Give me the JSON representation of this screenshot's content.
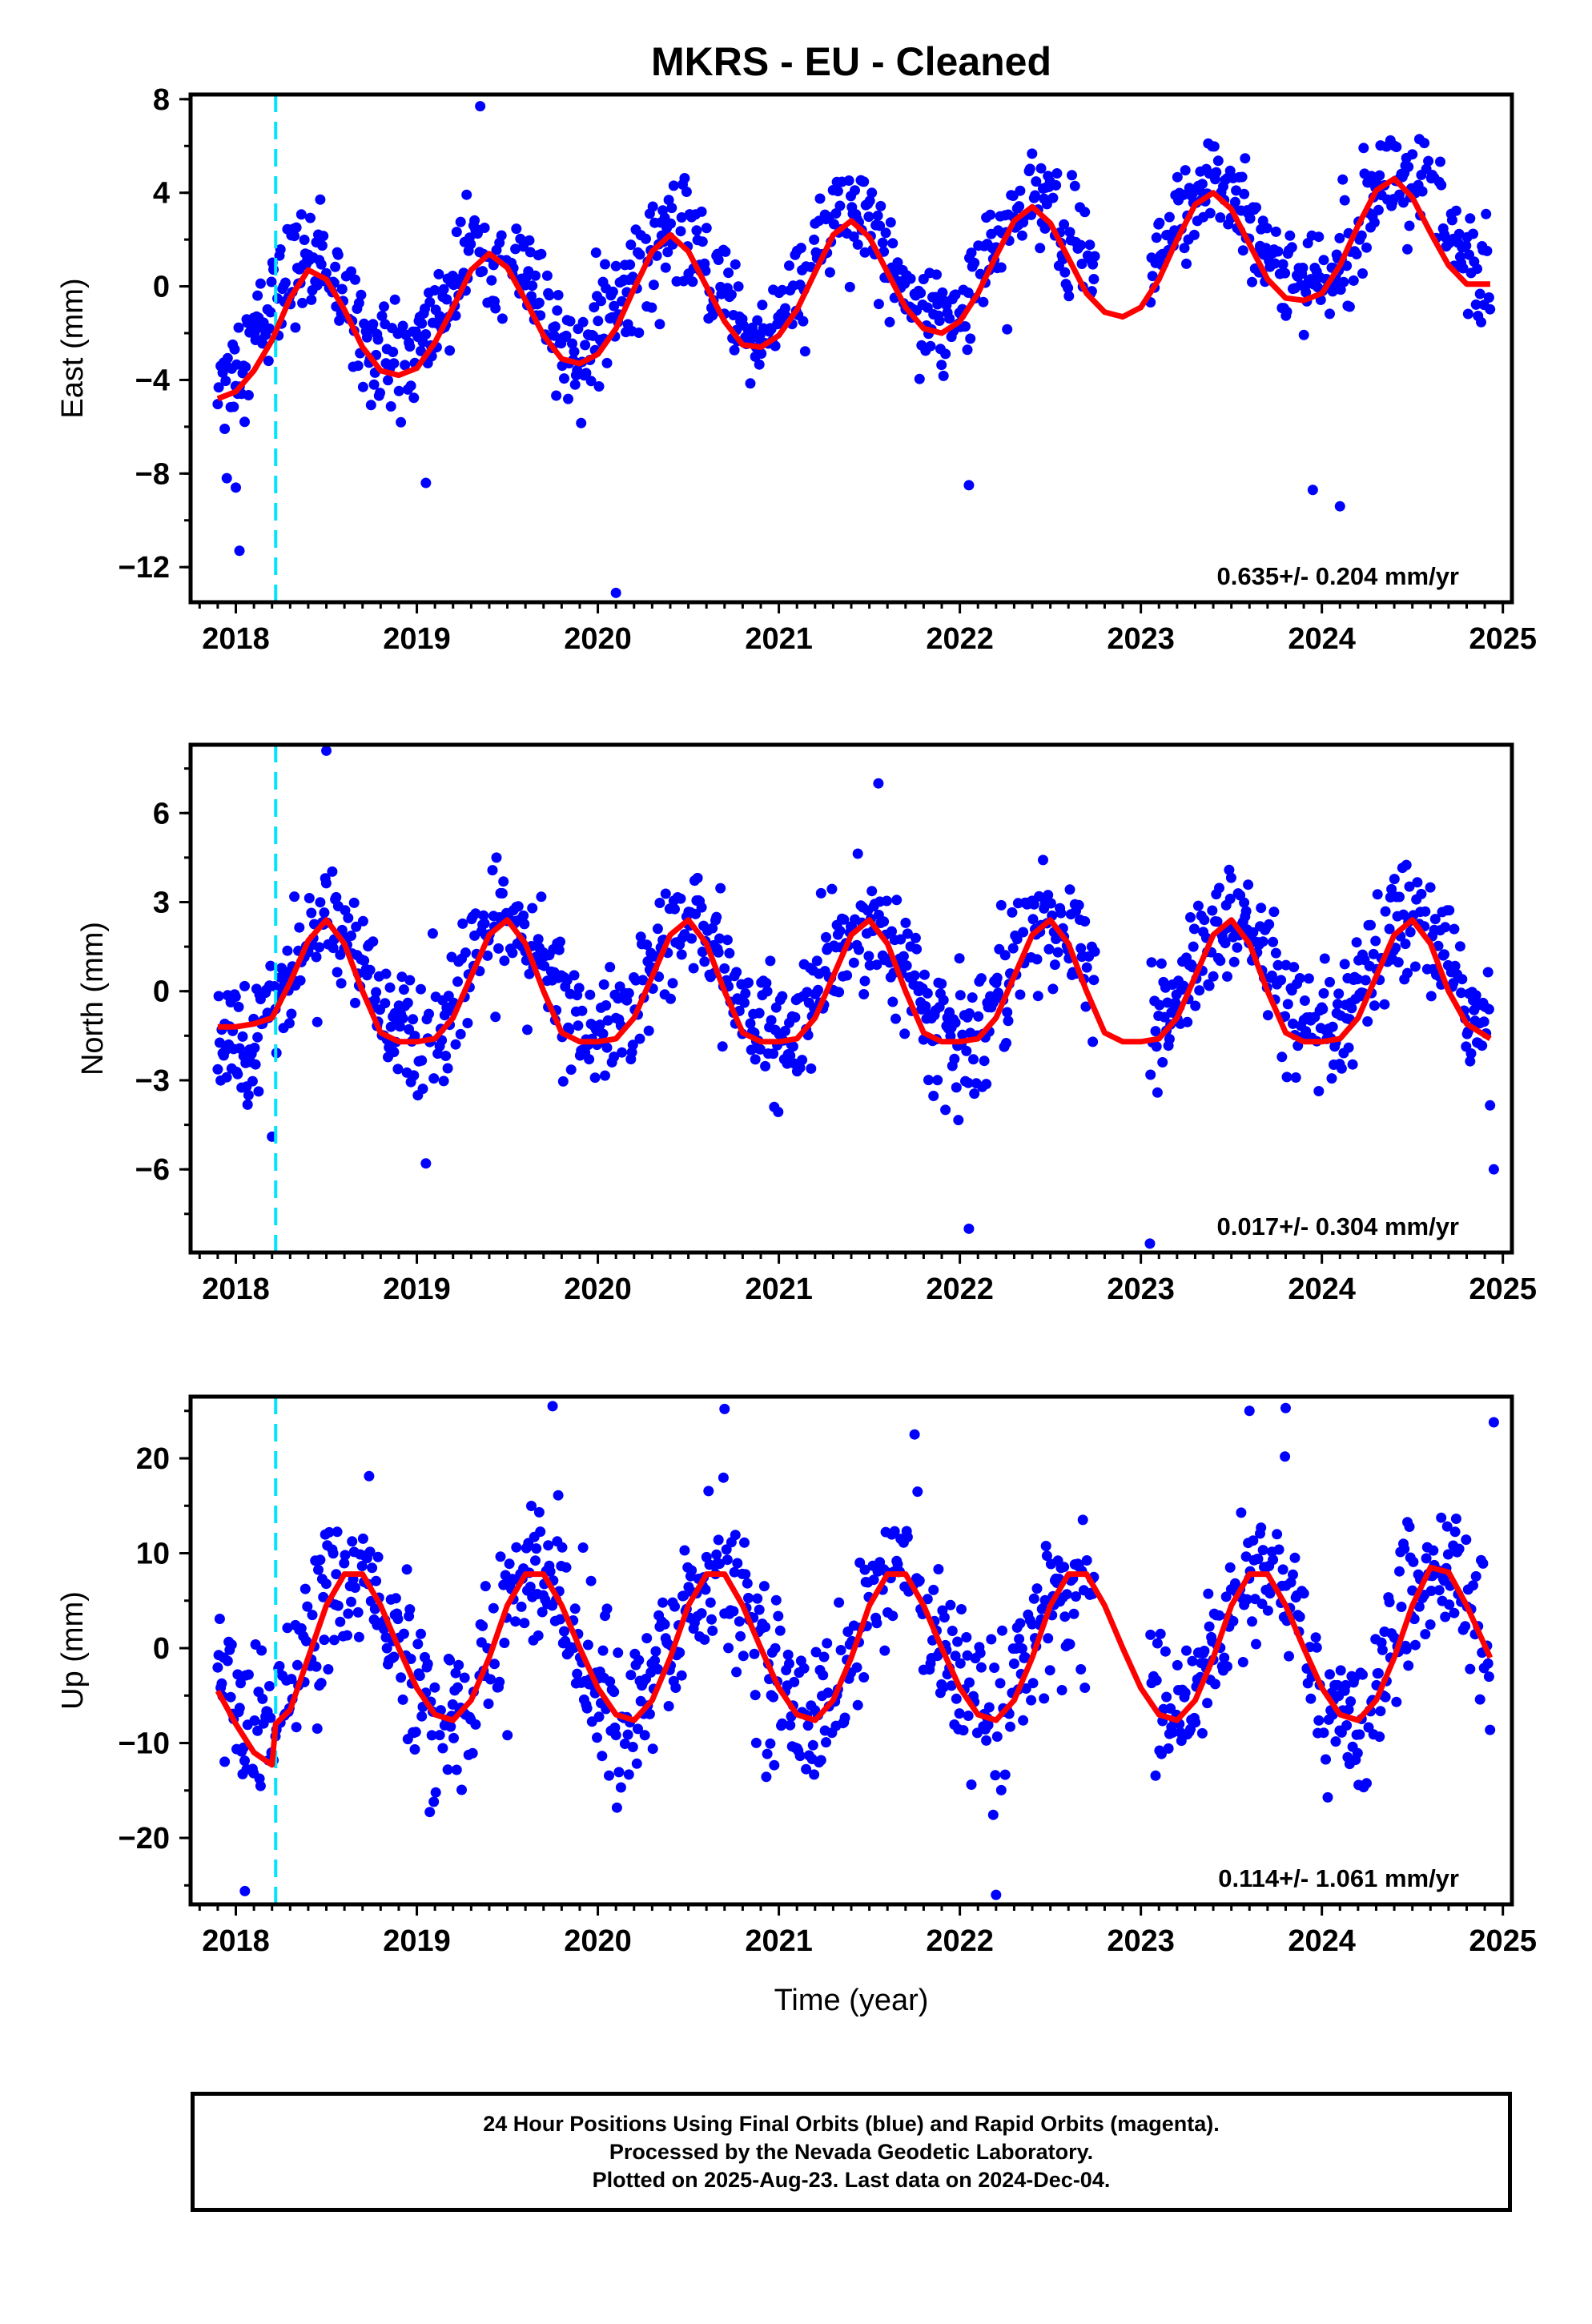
{
  "chart_data": {
    "title": "MKRS  - EU - Cleaned",
    "type": "scatter",
    "x_range": [
      2017.75,
      2025.05
    ],
    "x_ticks": [
      2018,
      2019,
      2020,
      2021,
      2022,
      2023,
      2024,
      2025
    ],
    "xlabel": "Time (year)",
    "reference_line": {
      "x": 2018.22,
      "color": "#00e5ff",
      "style": "dashed"
    },
    "data_start": 2017.9,
    "data_end": 2024.93,
    "gap": [
      2022.75,
      2023.05
    ],
    "colors": {
      "points": "#0000ff",
      "fit": "#ff0000",
      "axes": "#000000"
    },
    "panels": [
      {
        "ylabel": "East (mm)",
        "ylim": [
          -13.5,
          8.2
        ],
        "yticks": [
          8,
          4,
          0,
          -4,
          -8,
          -12
        ],
        "rate_text": "0.635+/- 0.204 mm/yr",
        "fit_curve": [
          [
            2017.9,
            -4.8
          ],
          [
            2018.0,
            -4.5
          ],
          [
            2018.1,
            -3.6
          ],
          [
            2018.2,
            -2.3
          ],
          [
            2018.3,
            -0.5
          ],
          [
            2018.4,
            0.7
          ],
          [
            2018.5,
            0.3
          ],
          [
            2018.6,
            -1.0
          ],
          [
            2018.7,
            -2.6
          ],
          [
            2018.8,
            -3.6
          ],
          [
            2018.9,
            -3.8
          ],
          [
            2019.0,
            -3.5
          ],
          [
            2019.1,
            -2.4
          ],
          [
            2019.2,
            -0.9
          ],
          [
            2019.3,
            0.7
          ],
          [
            2019.4,
            1.4
          ],
          [
            2019.5,
            0.8
          ],
          [
            2019.6,
            -0.6
          ],
          [
            2019.7,
            -2.1
          ],
          [
            2019.8,
            -3.1
          ],
          [
            2019.9,
            -3.3
          ],
          [
            2020.0,
            -2.9
          ],
          [
            2020.1,
            -1.8
          ],
          [
            2020.2,
            -0.1
          ],
          [
            2020.3,
            1.5
          ],
          [
            2020.4,
            2.2
          ],
          [
            2020.5,
            1.5
          ],
          [
            2020.6,
            0.0
          ],
          [
            2020.7,
            -1.5
          ],
          [
            2020.8,
            -2.5
          ],
          [
            2020.9,
            -2.6
          ],
          [
            2021.0,
            -2.1
          ],
          [
            2021.1,
            -1.0
          ],
          [
            2021.2,
            0.6
          ],
          [
            2021.3,
            2.2
          ],
          [
            2021.4,
            2.8
          ],
          [
            2021.5,
            2.1
          ],
          [
            2021.6,
            0.6
          ],
          [
            2021.7,
            -0.9
          ],
          [
            2021.8,
            -1.8
          ],
          [
            2021.9,
            -2.0
          ],
          [
            2022.0,
            -1.5
          ],
          [
            2022.1,
            -0.3
          ],
          [
            2022.2,
            1.3
          ],
          [
            2022.3,
            2.8
          ],
          [
            2022.4,
            3.4
          ],
          [
            2022.5,
            2.7
          ],
          [
            2022.6,
            1.2
          ],
          [
            2022.7,
            -0.3
          ],
          [
            2022.8,
            -1.1
          ],
          [
            2022.9,
            -1.3
          ],
          [
            2023.0,
            -0.9
          ],
          [
            2023.1,
            0.3
          ],
          [
            2023.2,
            2.0
          ],
          [
            2023.3,
            3.5
          ],
          [
            2023.4,
            4.0
          ],
          [
            2023.5,
            3.3
          ],
          [
            2023.6,
            1.8
          ],
          [
            2023.7,
            0.3
          ],
          [
            2023.8,
            -0.5
          ],
          [
            2023.9,
            -0.6
          ],
          [
            2024.0,
            -0.3
          ],
          [
            2024.1,
            0.9
          ],
          [
            2024.2,
            2.6
          ],
          [
            2024.3,
            4.1
          ],
          [
            2024.4,
            4.6
          ],
          [
            2024.5,
            3.8
          ],
          [
            2024.6,
            2.3
          ],
          [
            2024.7,
            0.9
          ],
          [
            2024.8,
            0.1
          ],
          [
            2024.93,
            0.1
          ]
        ],
        "scatter_model": {
          "phase_peak": 2018.4,
          "amplitude": 2.3,
          "offset_2018": -1.5,
          "trend": 0.635,
          "noise": 1.5
        },
        "outliers": [
          [
            2018.02,
            -11.3
          ],
          [
            2018.0,
            -8.6
          ],
          [
            2017.95,
            -8.2
          ],
          [
            2019.05,
            -8.4
          ],
          [
            2019.35,
            7.7
          ],
          [
            2020.1,
            -13.1
          ],
          [
            2022.05,
            -8.5
          ],
          [
            2023.95,
            -8.7
          ],
          [
            2024.1,
            -9.4
          ]
        ]
      },
      {
        "ylabel": "North (mm)",
        "ylim": [
          -8.8,
          8.3
        ],
        "yticks": [
          6,
          3,
          0,
          -3,
          -6
        ],
        "rate_text": "0.017+/- 0.304 mm/yr",
        "fit_curve": [
          [
            2017.9,
            -1.2
          ],
          [
            2018.0,
            -1.2
          ],
          [
            2018.1,
            -1.1
          ],
          [
            2018.2,
            -0.9
          ],
          [
            2018.3,
            0.3
          ],
          [
            2018.4,
            1.7
          ],
          [
            2018.5,
            2.4
          ],
          [
            2018.6,
            1.6
          ],
          [
            2018.7,
            0.0
          ],
          [
            2018.8,
            -1.4
          ],
          [
            2018.9,
            -1.7
          ],
          [
            2019.0,
            -1.7
          ],
          [
            2019.1,
            -1.6
          ],
          [
            2019.2,
            -0.9
          ],
          [
            2019.3,
            0.5
          ],
          [
            2019.4,
            1.9
          ],
          [
            2019.5,
            2.4
          ],
          [
            2019.6,
            1.6
          ],
          [
            2019.7,
            0.0
          ],
          [
            2019.8,
            -1.4
          ],
          [
            2019.9,
            -1.7
          ],
          [
            2020.0,
            -1.7
          ],
          [
            2020.1,
            -1.6
          ],
          [
            2020.2,
            -0.9
          ],
          [
            2020.3,
            0.5
          ],
          [
            2020.4,
            1.9
          ],
          [
            2020.5,
            2.4
          ],
          [
            2020.6,
            1.6
          ],
          [
            2020.7,
            0.0
          ],
          [
            2020.8,
            -1.4
          ],
          [
            2020.9,
            -1.7
          ],
          [
            2021.0,
            -1.7
          ],
          [
            2021.1,
            -1.6
          ],
          [
            2021.2,
            -0.9
          ],
          [
            2021.3,
            0.5
          ],
          [
            2021.4,
            1.9
          ],
          [
            2021.5,
            2.4
          ],
          [
            2021.6,
            1.6
          ],
          [
            2021.7,
            0.0
          ],
          [
            2021.8,
            -1.4
          ],
          [
            2021.9,
            -1.7
          ],
          [
            2022.0,
            -1.7
          ],
          [
            2022.1,
            -1.6
          ],
          [
            2022.2,
            -0.9
          ],
          [
            2022.3,
            0.5
          ],
          [
            2022.4,
            1.9
          ],
          [
            2022.5,
            2.4
          ],
          [
            2022.6,
            1.6
          ],
          [
            2022.7,
            0.0
          ],
          [
            2022.8,
            -1.4
          ],
          [
            2022.9,
            -1.7
          ],
          [
            2023.0,
            -1.7
          ],
          [
            2023.1,
            -1.6
          ],
          [
            2023.2,
            -0.9
          ],
          [
            2023.3,
            0.5
          ],
          [
            2023.4,
            1.9
          ],
          [
            2023.5,
            2.4
          ],
          [
            2023.6,
            1.6
          ],
          [
            2023.7,
            0.0
          ],
          [
            2023.8,
            -1.4
          ],
          [
            2023.9,
            -1.7
          ],
          [
            2024.0,
            -1.7
          ],
          [
            2024.1,
            -1.6
          ],
          [
            2024.2,
            -0.9
          ],
          [
            2024.3,
            0.5
          ],
          [
            2024.4,
            1.9
          ],
          [
            2024.5,
            2.4
          ],
          [
            2024.6,
            1.6
          ],
          [
            2024.7,
            0.0
          ],
          [
            2024.8,
            -1.1
          ],
          [
            2024.93,
            -1.6
          ]
        ],
        "scatter_model": {
          "phase_peak": 2018.5,
          "amplitude": 2.0,
          "offset_2018": 0.2,
          "trend": 0.017,
          "noise": 1.3
        },
        "outliers": [
          [
            2018.5,
            8.1
          ],
          [
            2021.55,
            7.0
          ],
          [
            2022.05,
            -8.0
          ],
          [
            2023.05,
            -8.5
          ],
          [
            2019.05,
            -5.8
          ],
          [
            2018.2,
            -4.9
          ],
          [
            2024.95,
            -6.0
          ]
        ]
      },
      {
        "ylabel": "Up (mm)",
        "ylim": [
          -27,
          26.5
        ],
        "yticks": [
          20,
          10,
          0,
          -10,
          -20
        ],
        "rate_text": "0.114+/- 1.061 mm/yr",
        "fit_curve": [
          [
            2017.9,
            -4.5
          ],
          [
            2018.0,
            -8.0
          ],
          [
            2018.1,
            -11.0
          ],
          [
            2018.2,
            -12.3
          ],
          [
            2018.22,
            -8.0
          ],
          [
            2018.3,
            -6.5
          ],
          [
            2018.4,
            -1.0
          ],
          [
            2018.5,
            4.5
          ],
          [
            2018.6,
            7.8
          ],
          [
            2018.7,
            7.8
          ],
          [
            2018.8,
            4.5
          ],
          [
            2018.9,
            0.0
          ],
          [
            2019.0,
            -4.2
          ],
          [
            2019.1,
            -7.0
          ],
          [
            2019.2,
            -7.6
          ],
          [
            2019.3,
            -5.5
          ],
          [
            2019.4,
            -1.0
          ],
          [
            2019.5,
            4.5
          ],
          [
            2019.6,
            7.8
          ],
          [
            2019.7,
            7.8
          ],
          [
            2019.8,
            4.5
          ],
          [
            2019.9,
            0.0
          ],
          [
            2020.0,
            -4.2
          ],
          [
            2020.1,
            -7.0
          ],
          [
            2020.2,
            -7.6
          ],
          [
            2020.3,
            -5.5
          ],
          [
            2020.4,
            -1.0
          ],
          [
            2020.5,
            4.5
          ],
          [
            2020.6,
            7.8
          ],
          [
            2020.7,
            7.8
          ],
          [
            2020.8,
            4.5
          ],
          [
            2020.9,
            0.0
          ],
          [
            2021.0,
            -4.2
          ],
          [
            2021.1,
            -7.0
          ],
          [
            2021.2,
            -7.6
          ],
          [
            2021.3,
            -5.5
          ],
          [
            2021.4,
            -1.0
          ],
          [
            2021.5,
            4.5
          ],
          [
            2021.6,
            7.8
          ],
          [
            2021.7,
            7.8
          ],
          [
            2021.8,
            4.5
          ],
          [
            2021.9,
            0.0
          ],
          [
            2022.0,
            -4.2
          ],
          [
            2022.1,
            -7.0
          ],
          [
            2022.2,
            -7.6
          ],
          [
            2022.3,
            -5.5
          ],
          [
            2022.4,
            -1.0
          ],
          [
            2022.5,
            4.5
          ],
          [
            2022.6,
            7.8
          ],
          [
            2022.7,
            7.8
          ],
          [
            2022.8,
            4.5
          ],
          [
            2022.9,
            0.0
          ],
          [
            2023.0,
            -4.2
          ],
          [
            2023.1,
            -7.0
          ],
          [
            2023.2,
            -7.6
          ],
          [
            2023.3,
            -5.5
          ],
          [
            2023.4,
            -1.0
          ],
          [
            2023.5,
            4.5
          ],
          [
            2023.6,
            7.8
          ],
          [
            2023.7,
            7.8
          ],
          [
            2023.8,
            4.5
          ],
          [
            2023.9,
            0.0
          ],
          [
            2024.0,
            -4.2
          ],
          [
            2024.1,
            -7.0
          ],
          [
            2024.2,
            -7.6
          ],
          [
            2024.3,
            -5.5
          ],
          [
            2024.4,
            -1.0
          ],
          [
            2024.5,
            4.5
          ],
          [
            2024.6,
            8.5
          ],
          [
            2024.7,
            8.0
          ],
          [
            2024.8,
            4.5
          ],
          [
            2024.93,
            -1.0
          ]
        ],
        "scatter_model": {
          "phase_peak": 2018.65,
          "amplitude": 7.8,
          "offset_2018": 0.0,
          "trend": 0.114,
          "noise": 5.5
        },
        "outliers": [
          [
            2019.75,
            25.5
          ],
          [
            2020.7,
            25.2
          ],
          [
            2023.6,
            25.0
          ],
          [
            2023.8,
            25.3
          ],
          [
            2022.2,
            -26.0
          ],
          [
            2018.05,
            -25.6
          ],
          [
            2024.95,
            23.8
          ]
        ]
      }
    ]
  },
  "footer": {
    "line1": "24 Hour Positions Using Final Orbits (blue) and Rapid Orbits (magenta).",
    "line2": "Processed by the Nevada Geodetic Laboratory.",
    "line3": "Plotted on 2025-Aug-23. Last data on 2024-Dec-04."
  }
}
